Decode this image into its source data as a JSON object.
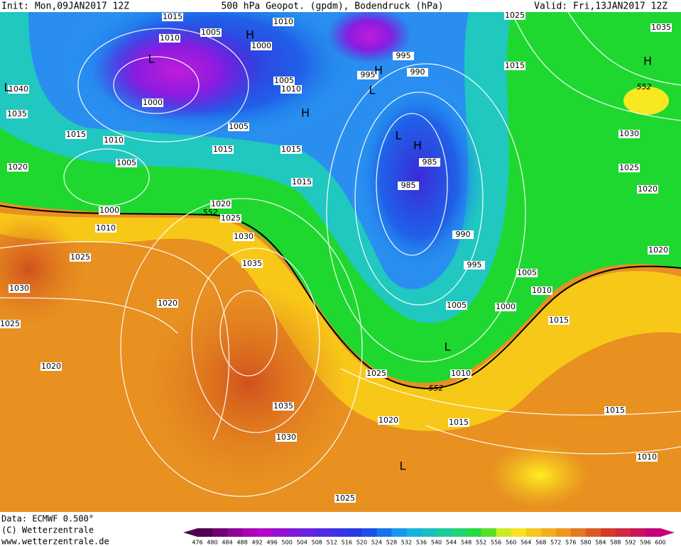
{
  "header": {
    "init": "Init: Mon,09JAN2017 12Z",
    "title": "500 hPa Geopot. (gpdm), Bodendruck (hPa)",
    "valid": "Valid: Fri,13JAN2017 12Z"
  },
  "footer": {
    "data": "Data: ECMWF  0.500°",
    "copyright": "(C) Wetterzentrale",
    "url": "www.wetterzentrale.de"
  },
  "isobar_labels": [
    "1015",
    "1010",
    "1005",
    "1010",
    "1000",
    "1005",
    "1010",
    "1000",
    "1040",
    "1035",
    "1015",
    "1010",
    "1005",
    "1005",
    "1015",
    "1015",
    "1020",
    "1000",
    "1010",
    "1015",
    "1020",
    "1025",
    "1030",
    "1025",
    "1035",
    "1030",
    "1020",
    "1025",
    "1020",
    "1035",
    "1030",
    "1025",
    "1020",
    "1015",
    "1010",
    "1005",
    "1000",
    "995",
    "990",
    "985",
    "985",
    "995",
    "990",
    "995",
    "1015",
    "1025",
    "1035",
    "1030",
    "1025",
    "1020",
    "1020",
    "1005",
    "1010",
    "1015",
    "1015",
    "1010",
    "1025"
  ],
  "contour_labels": [
    "552",
    "552",
    "552"
  ],
  "pressure_centers": [
    "L",
    "L",
    "H",
    "H",
    "H",
    "L",
    "L",
    "H",
    "H",
    "L",
    "L"
  ],
  "scale_labels": [
    476,
    480,
    484,
    488,
    492,
    496,
    500,
    504,
    508,
    512,
    516,
    520,
    524,
    528,
    532,
    536,
    540,
    544,
    548,
    552,
    556,
    560,
    564,
    568,
    572,
    576,
    580,
    584,
    588,
    592,
    596,
    600
  ]
}
